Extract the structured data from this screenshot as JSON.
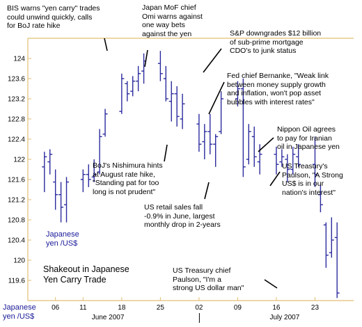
{
  "chart_data": {
    "type": "candlestick",
    "title": "Shakeout in Japanese\nYen Carry Trade",
    "series_label": "Japanese\nyen /US$",
    "xlabel": "Japanese\nyen /US$",
    "ylabel": "",
    "ylim": [
      119.2,
      124.4
    ],
    "yticks": [
      119.6,
      120,
      120.4,
      120.8,
      121.2,
      121.6,
      122,
      122.4,
      122.8,
      123.2,
      123.6,
      124
    ],
    "ytick_labels": [
      "119.6",
      "120",
      "120.4",
      "120.8",
      "121.2",
      "121.6",
      "122",
      "122.4",
      "122.8",
      "123.2",
      "123.6",
      "124"
    ],
    "x_tick_labels": [
      "06",
      "11",
      "18",
      "25",
      "02",
      "09",
      "16",
      "23"
    ],
    "month_labels": [
      "June 2007",
      "July 2007"
    ],
    "grid": false,
    "bars": [
      {
        "date": "2007-06-04",
        "high": 122.15,
        "low": 121.35,
        "open": 121.85,
        "close": 122.05
      },
      {
        "date": "2007-06-05",
        "high": 122.2,
        "low": 121.7,
        "open": 121.95,
        "close": 122.1
      },
      {
        "date": "2007-06-06",
        "high": 121.8,
        "low": 121.0,
        "open": 121.55,
        "close": 121.3
      },
      {
        "date": "2007-06-07",
        "high": 121.55,
        "low": 120.75,
        "open": 121.3,
        "close": 121.05
      },
      {
        "date": "2007-06-08",
        "high": 121.65,
        "low": 120.75,
        "open": 121.1,
        "close": 121.55
      },
      {
        "date": "2007-06-11",
        "high": 121.8,
        "low": 121.35,
        "open": 121.6,
        "close": 121.7
      },
      {
        "date": "2007-06-12",
        "high": 121.9,
        "low": 121.45,
        "open": 121.7,
        "close": 121.6
      },
      {
        "date": "2007-06-13",
        "high": 122.0,
        "low": 121.55,
        "open": 121.65,
        "close": 121.7
      },
      {
        "date": "2007-06-14",
        "high": 122.6,
        "low": 121.7,
        "open": 121.75,
        "close": 122.45
      },
      {
        "date": "2007-06-15",
        "high": 123.0,
        "low": 122.45,
        "open": 122.5,
        "close": 122.9
      },
      {
        "date": "2007-06-18",
        "high": 123.7,
        "low": 122.9,
        "open": 122.95,
        "close": 123.6
      },
      {
        "date": "2007-06-19",
        "high": 123.55,
        "low": 123.15,
        "open": 123.5,
        "close": 123.3
      },
      {
        "date": "2007-06-20",
        "high": 123.65,
        "low": 123.25,
        "open": 123.35,
        "close": 123.55
      },
      {
        "date": "2007-06-21",
        "high": 123.85,
        "low": 123.35,
        "open": 123.55,
        "close": 123.7
      },
      {
        "date": "2007-06-22",
        "high": 124.1,
        "low": 123.5,
        "open": 123.75,
        "close": 123.95
      },
      {
        "date": "2007-06-25",
        "high": 124.15,
        "low": 123.55,
        "open": 123.9,
        "close": 123.7
      },
      {
        "date": "2007-06-26",
        "high": 123.85,
        "low": 123.15,
        "open": 123.6,
        "close": 123.2
      },
      {
        "date": "2007-06-27",
        "high": 123.55,
        "low": 122.75,
        "open": 123.15,
        "close": 123.3
      },
      {
        "date": "2007-06-28",
        "high": 123.45,
        "low": 122.65,
        "open": 123.3,
        "close": 122.85
      },
      {
        "date": "2007-06-29",
        "high": 123.3,
        "low": 122.6,
        "open": 122.8,
        "close": 123.1
      },
      {
        "date": "2007-07-02",
        "high": 122.9,
        "low": 122.15,
        "open": 122.7,
        "close": 122.3
      },
      {
        "date": "2007-07-03",
        "high": 122.7,
        "low": 122.0,
        "open": 122.35,
        "close": 122.55
      },
      {
        "date": "2007-07-04",
        "high": 122.9,
        "low": 122.1,
        "open": 122.55,
        "close": 122.3
      },
      {
        "date": "2007-07-05",
        "high": 122.5,
        "low": 121.85,
        "open": 122.3,
        "close": 122.45
      },
      {
        "date": "2007-07-06",
        "high": 123.35,
        "low": 122.5,
        "open": 122.55,
        "close": 123.2
      },
      {
        "date": "2007-07-09",
        "high": 123.55,
        "low": 123.05,
        "open": 123.2,
        "close": 123.4
      },
      {
        "date": "2007-07-10",
        "high": 123.6,
        "low": 121.65,
        "open": 123.4,
        "close": 121.85
      },
      {
        "date": "2007-07-11",
        "high": 122.7,
        "low": 121.9,
        "open": 122.0,
        "close": 122.55
      },
      {
        "date": "2007-07-12",
        "high": 122.65,
        "low": 121.85,
        "open": 122.45,
        "close": 122.05
      },
      {
        "date": "2007-07-13",
        "high": 122.3,
        "low": 121.7,
        "open": 121.95,
        "close": 122.1
      },
      {
        "date": "2007-07-16",
        "high": 122.25,
        "low": 121.7,
        "open": 122.1,
        "close": 121.9
      },
      {
        "date": "2007-07-17",
        "high": 122.2,
        "low": 121.85,
        "open": 121.95,
        "close": 122.05
      },
      {
        "date": "2007-07-18",
        "high": 122.1,
        "low": 121.55,
        "open": 122.0,
        "close": 121.8
      },
      {
        "date": "2007-07-19",
        "high": 122.25,
        "low": 121.7,
        "open": 121.8,
        "close": 122.1
      },
      {
        "date": "2007-07-20",
        "high": 122.3,
        "low": 121.85,
        "open": 122.05,
        "close": 121.9
      },
      {
        "date": "2007-07-23",
        "high": 122.45,
        "low": 121.45,
        "open": 121.9,
        "close": 121.7
      },
      {
        "date": "2007-07-24",
        "high": 121.5,
        "low": 120.95,
        "open": 121.3,
        "close": 121.1
      },
      {
        "date": "2007-07-25",
        "high": 120.75,
        "low": 119.85,
        "open": 120.7,
        "close": 120.1
      },
      {
        "date": "2007-07-26",
        "high": 120.85,
        "low": 120.05,
        "open": 120.15,
        "close": 120.4
      },
      {
        "date": "2007-07-27",
        "high": 120.75,
        "low": 119.25,
        "open": 120.45,
        "close": 119.35
      }
    ],
    "annotations": [
      {
        "text": "BIS warns \"yen carry\" trades\ncould unwind quickly, calls\nfor BoJ rate hike",
        "date": "2007-06-21",
        "value": 124.1
      },
      {
        "text": "Japan MoF chief\nOmi warns against\none way bets\nagainst the yen",
        "date": "2007-06-26",
        "value": 123.85
      },
      {
        "text": "S&P downgrades $12 billion\nof sub-prime mortgage\nCDO's to junk status",
        "date": "2007-07-10",
        "value": 123.6
      },
      {
        "text": "Fed chief Bernanke, \"Weak link\nbetween money supply growth\nand inflation, won't pop asset\nbubbles with interest rates\"",
        "date": "2007-07-10",
        "value": 122.7
      },
      {
        "text": "Nippon Oil agrees\nto pay for Iranian\noil in Japanese yen",
        "date": "2007-07-23",
        "value": 122.1
      },
      {
        "text": "BoJ's Nishimura hints\nat August rate hike,\n\"Standing pat for too\nlong is not prudent\"",
        "date": "2007-07-02",
        "value": 122.1
      },
      {
        "text": "US Treasury's\nPaulson, \"A Strong\nUS$ is in our\nnation's interest\"",
        "date": "2007-07-24",
        "value": 121.5
      },
      {
        "text": "US retail sales fall\n-0.9% in June, largest\nmonthly drop in 2-years",
        "date": "2007-07-13",
        "value": 121.3
      },
      {
        "text": "US Treasury chief\nPaulson, \"I'm a\nstrong US dollar man\"",
        "date": "2007-07-27",
        "value": 119.35
      }
    ]
  }
}
